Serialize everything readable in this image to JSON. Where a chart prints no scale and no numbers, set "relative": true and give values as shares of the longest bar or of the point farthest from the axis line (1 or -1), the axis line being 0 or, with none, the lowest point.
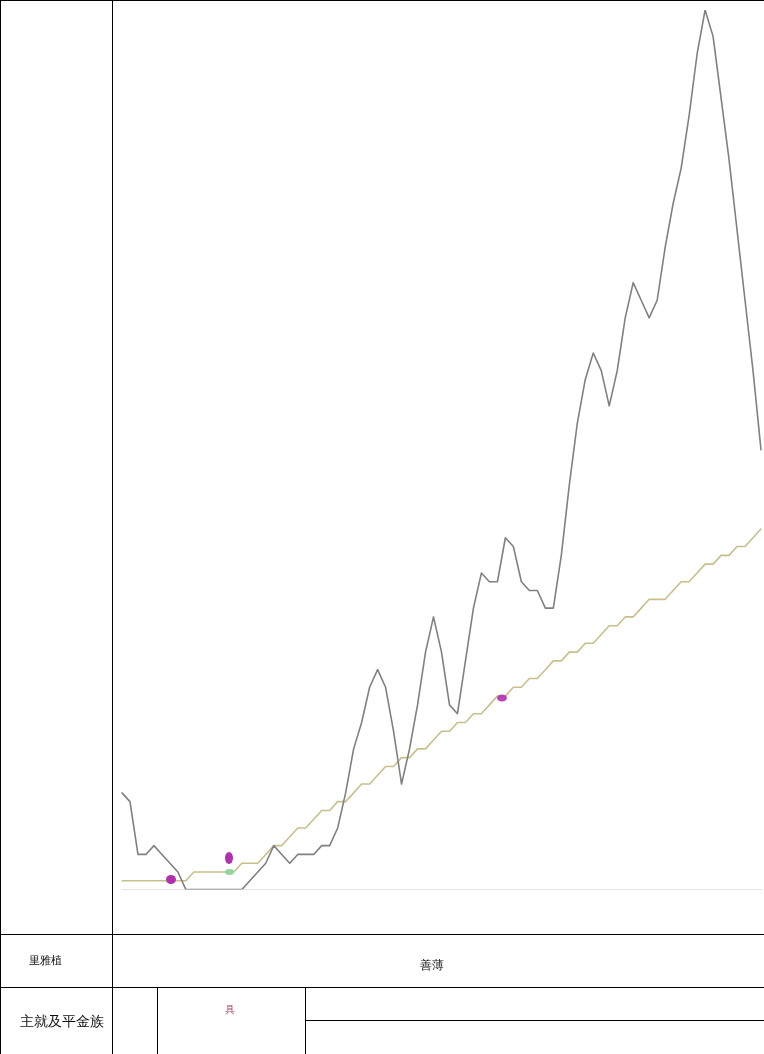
{
  "chart_data": {
    "type": "line",
    "relative": true,
    "categories": [
      null,
      null,
      null,
      null,
      null,
      null,
      null,
      null,
      null,
      null,
      null,
      null,
      null,
      null,
      null,
      null,
      null,
      null,
      null,
      null,
      null,
      null,
      null,
      null,
      null,
      null,
      null,
      null,
      null,
      null,
      null,
      null,
      null,
      null,
      null,
      null,
      null,
      null,
      null,
      null,
      null,
      null,
      null,
      null,
      null,
      null,
      null,
      null,
      null,
      null,
      null,
      null,
      null,
      null,
      null,
      null,
      null,
      null,
      null,
      null,
      null,
      null,
      null,
      null,
      null,
      null,
      null,
      null,
      null,
      null,
      null,
      null,
      null,
      null,
      null,
      null,
      null,
      null,
      null,
      null,
      null
    ],
    "series": [
      {
        "color": "#808080",
        "values": [
          0.11,
          0.1,
          0.04,
          0.04,
          0.05,
          0.04,
          0.03,
          0.02,
          0.0,
          0.0,
          0.0,
          0.0,
          0.0,
          0,
          0.0,
          0.0,
          0.01,
          0.02,
          0.03,
          0.05,
          0.04,
          0.03,
          0.04,
          0.04,
          0.04,
          0.05,
          0.05,
          0.07,
          0.11,
          0.16,
          0.19,
          0.23,
          0.25,
          0.23,
          0.18,
          0.12,
          0.16,
          0.21,
          0.27,
          0.31,
          0.27,
          0.21,
          0.2,
          0.26,
          0.32,
          0.36,
          0.35,
          0.35,
          0.4,
          0.39,
          0.35,
          0.34,
          0.34,
          0.32,
          0.32,
          0.38,
          0.46,
          0.53,
          0.58,
          0.61,
          0.59,
          0.55,
          0.59,
          0.65,
          0.69,
          0.67,
          0.65,
          0.67,
          0.73,
          0.78,
          0.82,
          0.88,
          0.95,
          1,
          0.97,
          0.9,
          0.83,
          0.75,
          0.67,
          0.59,
          0.5
        ]
      },
      {
        "color": "#c8bf8c",
        "values": [
          0.01,
          0.01,
          0.01,
          0.01,
          0.01,
          0.01,
          0.01,
          0.01,
          0.01,
          0.02,
          0.02,
          0.02,
          0.02,
          0.02,
          0.02,
          0.03,
          0.03,
          0.03,
          0.04,
          0.05,
          0.05,
          0.06,
          0.07,
          0.07,
          0.08,
          0.09,
          0.09,
          0.1,
          0.1,
          0.11,
          0.12,
          0.12,
          0.13,
          0.14,
          0.14,
          0.15,
          0.15,
          0.16,
          0.16,
          0.17,
          0.18,
          0.18,
          0.19,
          0.19,
          0.2,
          0.2,
          0.21,
          0.22,
          0.22,
          0.23,
          0.23,
          0.24,
          0.24,
          0.25,
          0.26,
          0.26,
          0.27,
          0.27,
          0.28,
          0.28,
          0.29,
          0.3,
          0.3,
          0.31,
          0.31,
          0.32,
          0.33,
          0.33,
          0.33,
          0.34,
          0.35,
          0.35,
          0.36,
          0.37,
          0.37,
          0.38,
          0.38,
          0.39,
          0.39,
          0.4,
          0.41
        ]
      }
    ],
    "annotations": [
      "里雅植",
      "善薄",
      "主就及平金族",
      "具"
    ]
  }
}
